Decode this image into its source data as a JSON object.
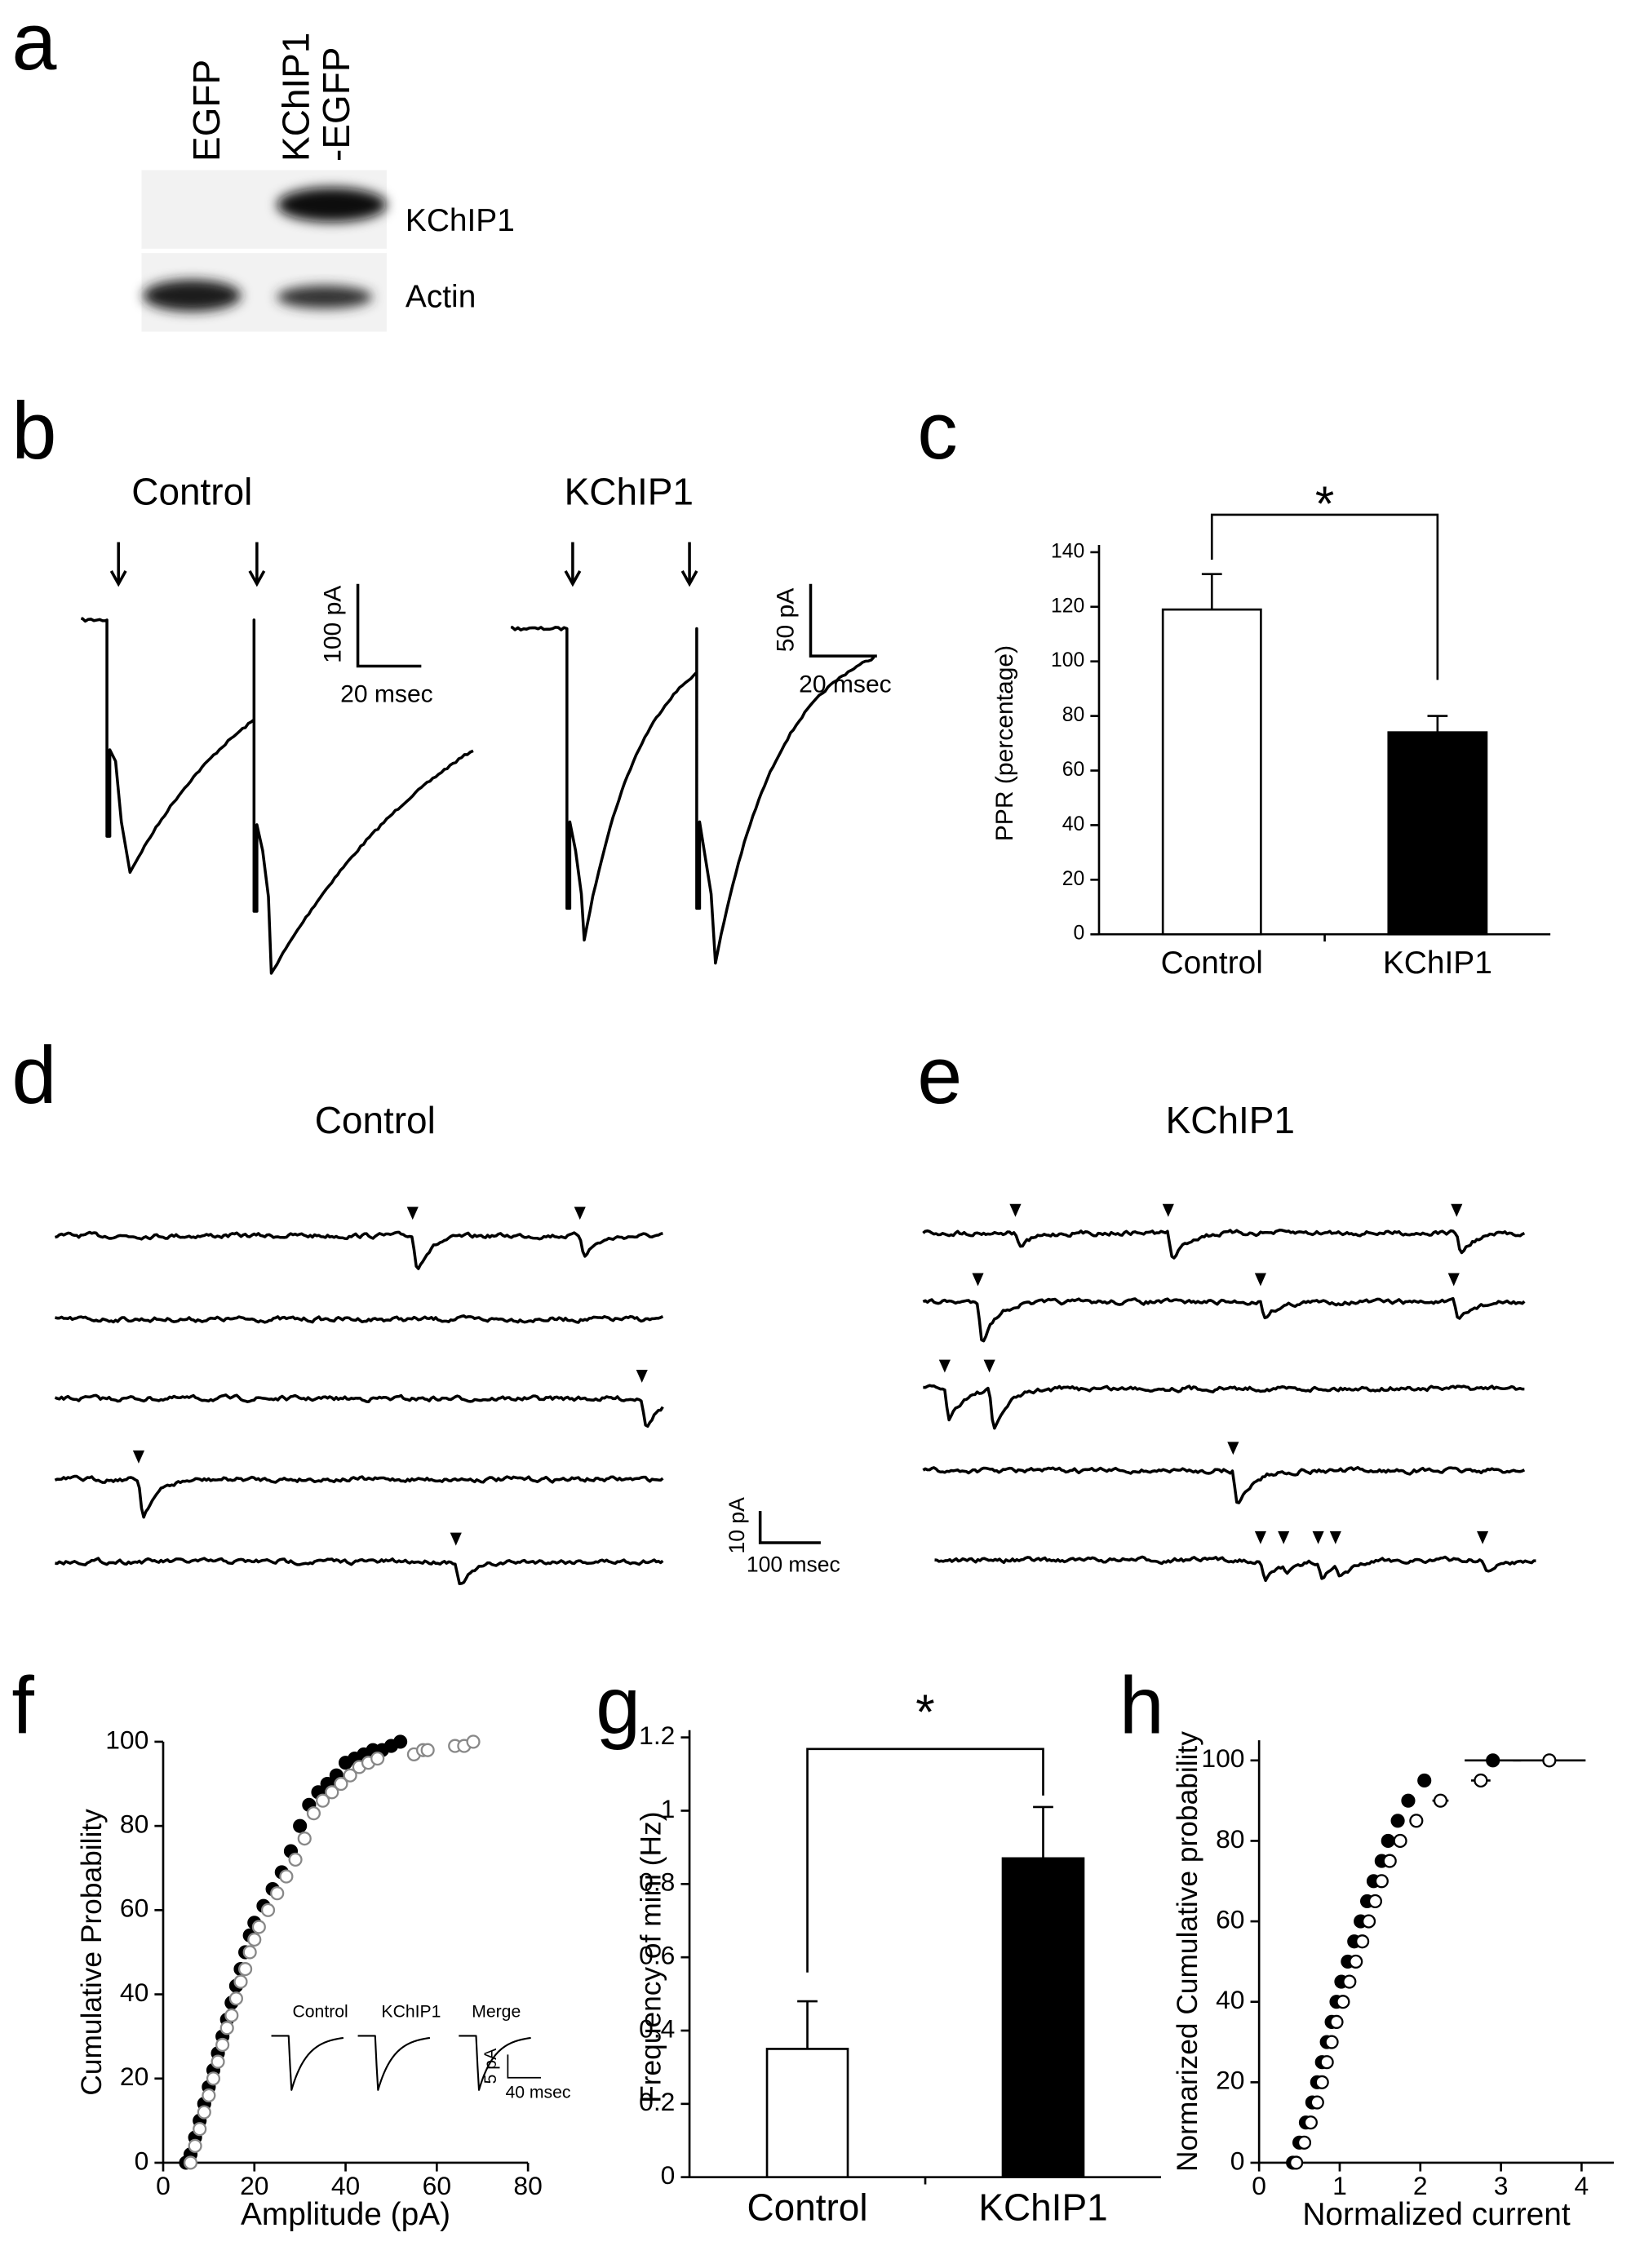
{
  "figure": {
    "panel_labels": [
      "a",
      "b",
      "c",
      "d",
      "e",
      "f",
      "g",
      "h"
    ],
    "blot": {
      "lanes": [
        "EGFP",
        "KChIP1",
        "-EGFP"
      ],
      "bands": [
        "KChIP1",
        "Actin"
      ]
    },
    "evoked": {
      "conditions": [
        "Control",
        "KChIP1"
      ],
      "scale_bars": [
        [
          "100 pA",
          "20 msec"
        ],
        [
          "50 pA",
          "20 msec"
        ]
      ]
    },
    "minis": {
      "conditions": [
        "Control",
        "KChIP1"
      ],
      "scale_bar": [
        "10 pA",
        "100 msec"
      ]
    },
    "inset": {
      "labels": [
        "Control",
        "KChIP1",
        "Merge"
      ],
      "scale_bar": [
        "5 pA",
        "40 msec"
      ]
    }
  },
  "chart_data": [
    {
      "type": "bar",
      "ylabel": "PPR (percentage)",
      "categories": [
        "Control",
        "KChIP1"
      ],
      "values": [
        119,
        74
      ],
      "errors": [
        13,
        6
      ],
      "colors": [
        "#ffffff",
        "#000000"
      ],
      "ylim": [
        0,
        140
      ],
      "yticks": [
        0,
        20,
        40,
        60,
        80,
        100,
        120,
        140
      ],
      "significance": "*"
    },
    {
      "type": "scatter",
      "xlabel": "Amplitude (pA)",
      "ylabel": "Cumulative Probability",
      "xlim": [
        0,
        80
      ],
      "xticks": [
        0,
        20,
        40,
        60,
        80
      ],
      "ylim": [
        0,
        100
      ],
      "yticks": [
        0,
        20,
        40,
        60,
        80,
        100
      ],
      "series": [
        {
          "color": "#000000",
          "marker": "filled",
          "x": [
            5,
            6,
            7,
            8,
            9,
            10,
            11,
            12,
            13,
            14,
            15,
            16,
            17,
            18,
            19,
            20,
            22,
            24,
            26,
            28,
            30,
            32,
            34,
            36,
            38,
            40,
            42,
            44,
            46,
            48,
            50,
            52
          ],
          "values": [
            0,
            2,
            6,
            10,
            14,
            18,
            22,
            26,
            30,
            34,
            38,
            42,
            46,
            50,
            54,
            57,
            61,
            65,
            69,
            74,
            80,
            85,
            88,
            90,
            92,
            95,
            96,
            97,
            98,
            98,
            99,
            100
          ]
        },
        {
          "color": "#888888",
          "marker": "open",
          "x": [
            6,
            7,
            8,
            9,
            10,
            11,
            12,
            13,
            14,
            15,
            16,
            17,
            18,
            19,
            20,
            21,
            23,
            25,
            27,
            29,
            31,
            33,
            35,
            37,
            39,
            41,
            43,
            45,
            47,
            55,
            57,
            58,
            64,
            66,
            68
          ],
          "values": [
            0,
            4,
            8,
            12,
            16,
            20,
            24,
            28,
            32,
            35,
            39,
            43,
            46,
            50,
            53,
            56,
            60,
            64,
            68,
            72,
            77,
            83,
            86,
            88,
            90,
            92,
            94,
            95,
            96,
            97,
            98,
            98,
            99,
            99,
            100
          ]
        }
      ]
    },
    {
      "type": "bar",
      "ylabel": "Frequency of mini (Hz)",
      "categories": [
        "Control",
        "KChIP1"
      ],
      "values": [
        0.35,
        0.87
      ],
      "errors": [
        0.13,
        0.14
      ],
      "colors": [
        "#ffffff",
        "#000000"
      ],
      "ylim": [
        0,
        1.2
      ],
      "yticks": [
        0,
        0.2,
        0.4,
        0.6,
        0.8,
        1,
        1.2
      ],
      "significance": "*"
    },
    {
      "type": "scatter",
      "xlabel": "Normalized current",
      "ylabel": "Normarized Cumulative probability",
      "xlim": [
        0,
        4.4
      ],
      "xticks": [
        0,
        1,
        2,
        3,
        4
      ],
      "ylim": [
        0,
        105
      ],
      "yticks": [
        0,
        20,
        40,
        60,
        80,
        100
      ],
      "series": [
        {
          "color": "#000000",
          "marker": "filled",
          "x": [
            0.42,
            0.5,
            0.58,
            0.66,
            0.72,
            0.78,
            0.84,
            0.9,
            0.96,
            1.02,
            1.1,
            1.18,
            1.26,
            1.34,
            1.42,
            1.52,
            1.6,
            1.72,
            1.85,
            2.05,
            2.9
          ],
          "xerr": [
            0.02,
            0.02,
            0.02,
            0.02,
            0.02,
            0.02,
            0.02,
            0.02,
            0.02,
            0.02,
            0.02,
            0.02,
            0.03,
            0.03,
            0.03,
            0.03,
            0.04,
            0.06,
            0.07,
            0.08,
            0.35
          ],
          "values": [
            0,
            5,
            10,
            15,
            20,
            25,
            30,
            35,
            40,
            45,
            50,
            55,
            60,
            65,
            70,
            75,
            80,
            85,
            90,
            95,
            100
          ]
        },
        {
          "color": "#000000",
          "marker": "open",
          "x": [
            0.46,
            0.56,
            0.64,
            0.72,
            0.78,
            0.84,
            0.9,
            0.96,
            1.04,
            1.12,
            1.2,
            1.28,
            1.36,
            1.44,
            1.52,
            1.62,
            1.75,
            1.95,
            2.25,
            2.75,
            3.6
          ],
          "xerr": [
            0.02,
            0.02,
            0.02,
            0.02,
            0.02,
            0.02,
            0.02,
            0.02,
            0.02,
            0.02,
            0.02,
            0.02,
            0.03,
            0.03,
            0.03,
            0.04,
            0.05,
            0.07,
            0.1,
            0.12,
            0.45
          ],
          "values": [
            0,
            5,
            10,
            15,
            20,
            25,
            30,
            35,
            40,
            45,
            50,
            55,
            60,
            65,
            70,
            75,
            80,
            85,
            90,
            95,
            100
          ]
        }
      ]
    }
  ]
}
